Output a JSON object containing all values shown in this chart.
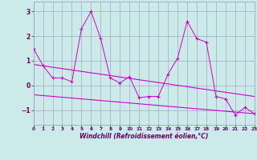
{
  "x": [
    0,
    1,
    2,
    3,
    4,
    5,
    6,
    7,
    8,
    9,
    10,
    11,
    12,
    13,
    14,
    15,
    16,
    17,
    18,
    19,
    20,
    21,
    22,
    23
  ],
  "y_main": [
    1.5,
    0.8,
    0.3,
    0.3,
    0.15,
    2.3,
    3.0,
    1.9,
    0.3,
    0.1,
    0.35,
    -0.5,
    -0.45,
    -0.45,
    0.45,
    1.1,
    2.6,
    1.9,
    1.75,
    -0.45,
    -0.55,
    -1.2,
    -0.9,
    -1.15
  ],
  "line1_x": [
    0,
    23
  ],
  "line1_y": [
    0.85,
    -0.45
  ],
  "line2_x": [
    0,
    23
  ],
  "line2_y": [
    -0.38,
    -1.15
  ],
  "bg_color": "#cceaea",
  "line_color": "#cc00cc",
  "grid_color": "#9999bb",
  "spine_color": "#9999bb",
  "font_color": "#660066",
  "xlabel": "Windchill (Refroidissement éolien,°C)",
  "xlim": [
    0,
    23
  ],
  "ylim": [
    -1.6,
    3.4
  ],
  "yticks": [
    -1,
    0,
    1,
    2,
    3
  ],
  "xticks": [
    0,
    1,
    2,
    3,
    4,
    5,
    6,
    7,
    8,
    9,
    10,
    11,
    12,
    13,
    14,
    15,
    16,
    17,
    18,
    19,
    20,
    21,
    22,
    23
  ]
}
